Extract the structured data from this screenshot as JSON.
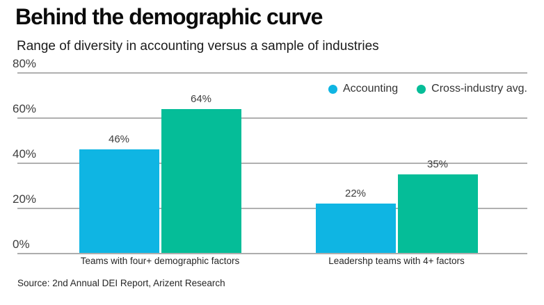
{
  "header": {
    "title": "Behind the demographic curve",
    "subtitle": "Range of diversity in accounting versus a sample of industries"
  },
  "chart_data": {
    "type": "bar",
    "categories": [
      "Teams with four+ demographic factors",
      "Leadershp teams with 4+ factors"
    ],
    "series": [
      {
        "name": "Accounting",
        "color": "#0fb5e3",
        "values": [
          46,
          22
        ]
      },
      {
        "name": "Cross-industry avg.",
        "color": "#05bd98",
        "values": [
          64,
          35
        ]
      }
    ],
    "value_suffix": "%",
    "ylim": [
      0,
      80
    ],
    "ytick_step": 20,
    "ytick_labels": [
      "0%",
      "20%",
      "40%",
      "60%",
      "80%"
    ],
    "grid": true,
    "data_labels": true,
    "legend_position": "top-right"
  },
  "footer": {
    "source": "Source: 2nd Annual DEI Report, Arizent Research"
  },
  "colors": {
    "grid": "#b0b0b0",
    "axis": "#adadad",
    "accent_accounting": "#0fb5e3",
    "accent_cross_industry": "#05bd98"
  }
}
